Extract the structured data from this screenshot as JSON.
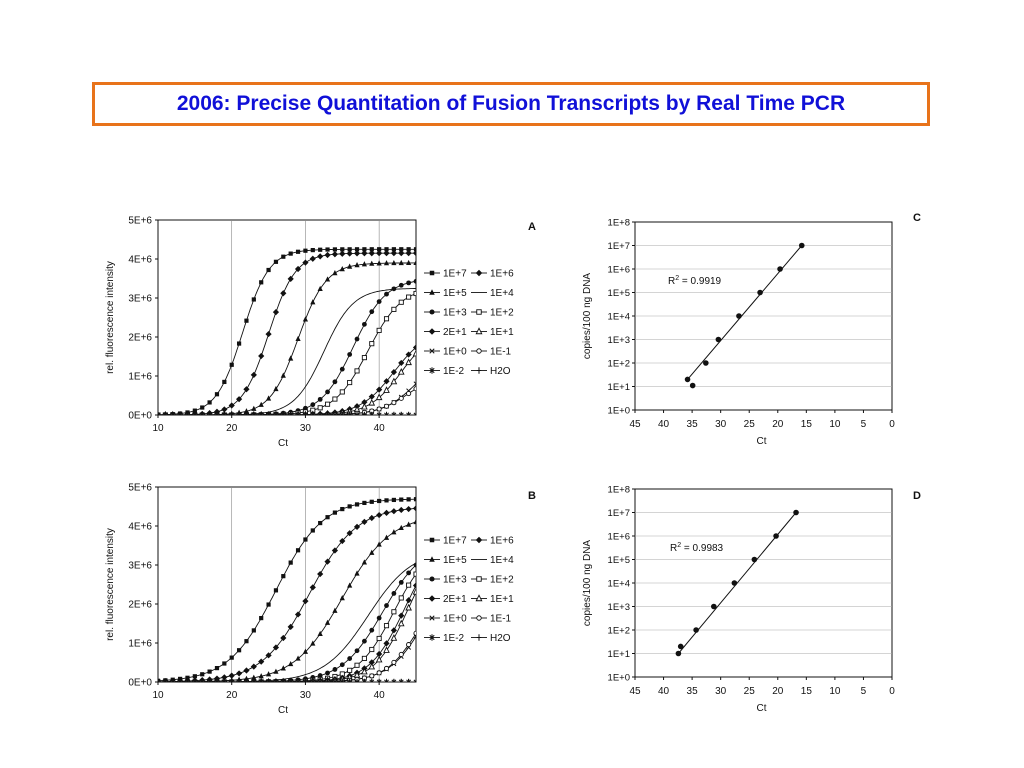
{
  "slide": {
    "title": "2006: Precise Quantitation of Fusion Transcripts by Real Time PCR",
    "accent_color": "#e8731a",
    "title_color": "#1010d8"
  },
  "chart_data": [
    {
      "panel": "A",
      "type": "line",
      "xlabel": "Ct",
      "ylabel": "rel. fluorescence intensity",
      "xlim": [
        10,
        45
      ],
      "ylim": [
        0,
        5000000
      ],
      "x_ticks": [
        "10",
        "20",
        "30",
        "40"
      ],
      "y_ticks": [
        "0E+0",
        "1E+6",
        "2E+6",
        "3E+6",
        "4E+6",
        "5E+6"
      ],
      "grid": "vertical",
      "legend_position": "right",
      "series": [
        {
          "name": "1E+7",
          "marker": "square",
          "ct": 21.5,
          "plateau": 4250000,
          "slope": 1.8
        },
        {
          "name": "1E+6",
          "marker": "diamond",
          "ct": 25.0,
          "plateau": 4150000,
          "slope": 1.8
        },
        {
          "name": "1E+5",
          "marker": "triangle",
          "ct": 29.0,
          "plateau": 3900000,
          "slope": 1.9
        },
        {
          "name": "1E+4",
          "marker": "none",
          "ct": 32.5,
          "plateau": 3250000,
          "slope": 2.0
        },
        {
          "name": "1E+3",
          "marker": "circle",
          "ct": 36.5,
          "plateau": 3500000,
          "slope": 2.2
        },
        {
          "name": "1E+2",
          "marker": "square-open",
          "ct": 38.5,
          "plateau": 3300000,
          "slope": 2.3
        },
        {
          "name": "2E+1",
          "marker": "diamond",
          "ct": 42.0,
          "plateau": 2200000,
          "slope": 2.3
        },
        {
          "name": "1E+1",
          "marker": "triangle-open",
          "ct": 43.0,
          "plateau": 2200000,
          "slope": 2.2
        },
        {
          "name": "1E+0",
          "marker": "x",
          "ct": 45.0,
          "plateau": 1600000,
          "slope": 2.2
        },
        {
          "name": "1E-1",
          "marker": "circle-open",
          "ct": 44.0,
          "plateau": 1100000,
          "slope": 2.2
        },
        {
          "name": "1E-2",
          "marker": "asterisk",
          "ct": 60.0,
          "plateau": 0,
          "slope": 2.0
        },
        {
          "name": "H2O",
          "marker": "plus",
          "ct": 60.0,
          "plateau": 0,
          "slope": 2.0
        }
      ]
    },
    {
      "panel": "B",
      "type": "line",
      "xlabel": "Ct",
      "ylabel": "rel. fluorescence intensity",
      "xlim": [
        10,
        45
      ],
      "ylim": [
        0,
        5000000
      ],
      "x_ticks": [
        "10",
        "20",
        "30",
        "40"
      ],
      "y_ticks": [
        "0E+0",
        "1E+6",
        "2E+6",
        "3E+6",
        "4E+6",
        "5E+6"
      ],
      "grid": "vertical",
      "legend_position": "right",
      "series": [
        {
          "name": "1E+7",
          "marker": "square",
          "ct": 26.0,
          "plateau": 4700000,
          "slope": 3.2
        },
        {
          "name": "1E+6",
          "marker": "diamond",
          "ct": 30.5,
          "plateau": 4500000,
          "slope": 3.2
        },
        {
          "name": "1E+5",
          "marker": "triangle",
          "ct": 35.0,
          "plateau": 4300000,
          "slope": 3.3
        },
        {
          "name": "1E+4",
          "marker": "none",
          "ct": 38.5,
          "plateau": 3400000,
          "slope": 3.0
        },
        {
          "name": "1E+3",
          "marker": "circle",
          "ct": 40.5,
          "plateau": 3600000,
          "slope": 2.8
        },
        {
          "name": "1E+2",
          "marker": "square-open",
          "ct": 42.0,
          "plateau": 3600000,
          "slope": 2.5
        },
        {
          "name": "2E+1",
          "marker": "diamond",
          "ct": 43.5,
          "plateau": 3800000,
          "slope": 2.4
        },
        {
          "name": "1E+1",
          "marker": "triangle-open",
          "ct": 44.0,
          "plateau": 3800000,
          "slope": 2.3
        },
        {
          "name": "1E+0",
          "marker": "x",
          "ct": 46.5,
          "plateau": 3300000,
          "slope": 2.5
        },
        {
          "name": "1E-1",
          "marker": "circle-open",
          "ct": 45.5,
          "plateau": 2800000,
          "slope": 2.3
        },
        {
          "name": "1E-2",
          "marker": "asterisk",
          "ct": 60.0,
          "plateau": 0,
          "slope": 2.0
        },
        {
          "name": "H2O",
          "marker": "plus",
          "ct": 60.0,
          "plateau": 0,
          "slope": 2.0
        }
      ]
    },
    {
      "panel": "C",
      "type": "scatter",
      "xlabel": "Ct",
      "ylabel": "copies/100 ng DNA",
      "xlim": [
        45,
        0
      ],
      "x_reversed": true,
      "y_log": true,
      "ylim_log10": [
        0,
        8
      ],
      "x_ticks": [
        "45",
        "40",
        "35",
        "30",
        "25",
        "20",
        "15",
        "10",
        "5",
        "0"
      ],
      "y_ticks": [
        "1E+0",
        "1E+1",
        "1E+2",
        "1E+3",
        "1E+4",
        "1E+5",
        "1E+6",
        "1E+7",
        "1E+8"
      ],
      "grid": "horizontal",
      "r2_prefix": "R",
      "r2_sup": "2",
      "r2_text": " = 0.9919",
      "points": [
        {
          "x": 35.8,
          "y": 20
        },
        {
          "x": 34.9,
          "y": 11
        },
        {
          "x": 32.6,
          "y": 100
        },
        {
          "x": 30.4,
          "y": 1000
        },
        {
          "x": 26.8,
          "y": 10000
        },
        {
          "x": 23.1,
          "y": 100000
        },
        {
          "x": 19.6,
          "y": 1000000
        },
        {
          "x": 15.8,
          "y": 10000000
        }
      ],
      "fit": {
        "x": [
          35.8,
          15.8
        ],
        "y": [
          20,
          10000000
        ]
      }
    },
    {
      "panel": "D",
      "type": "scatter",
      "xlabel": "Ct",
      "ylabel": "copies/100 ng DNA",
      "xlim": [
        45,
        0
      ],
      "x_reversed": true,
      "y_log": true,
      "ylim_log10": [
        0,
        8
      ],
      "x_ticks": [
        "45",
        "40",
        "35",
        "30",
        "25",
        "20",
        "15",
        "10",
        "5",
        "0"
      ],
      "y_ticks": [
        "1E+0",
        "1E+1",
        "1E+2",
        "1E+3",
        "1E+4",
        "1E+5",
        "1E+6",
        "1E+7",
        "1E+8"
      ],
      "grid": "horizontal",
      "r2_prefix": "R",
      "r2_sup": "2",
      "r2_text": " = 0.9983",
      "points": [
        {
          "x": 37.4,
          "y": 10
        },
        {
          "x": 37.0,
          "y": 20
        },
        {
          "x": 34.3,
          "y": 100
        },
        {
          "x": 31.2,
          "y": 1000
        },
        {
          "x": 27.6,
          "y": 10000
        },
        {
          "x": 24.1,
          "y": 100000
        },
        {
          "x": 20.3,
          "y": 1000000
        },
        {
          "x": 16.8,
          "y": 10000000
        }
      ],
      "fit": {
        "x": [
          37.4,
          16.8
        ],
        "y": [
          10,
          10000000
        ]
      }
    }
  ]
}
